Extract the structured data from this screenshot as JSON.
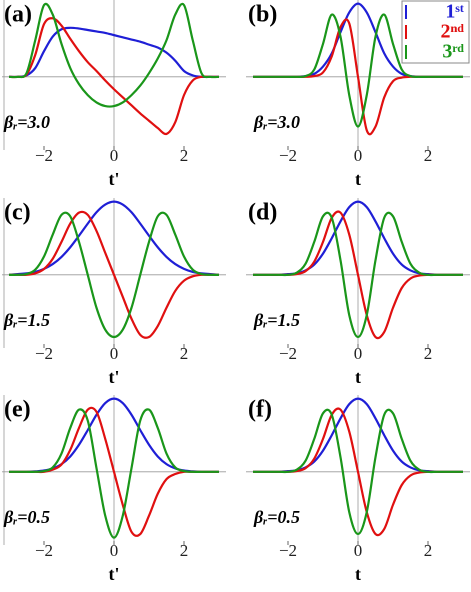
{
  "chart_data": [
    {
      "type": "line",
      "panel_label": "(a)",
      "annotation": "βᵣ=3.0",
      "x_label": "t'",
      "x": [
        -3,
        -2.75,
        -2.5,
        -2.25,
        -2,
        -1.75,
        -1.5,
        -1.25,
        -1,
        -0.75,
        -0.5,
        -0.25,
        0,
        0.25,
        0.5,
        0.75,
        1,
        1.25,
        1.5,
        1.75,
        2,
        2.25,
        2.5,
        2.75,
        3
      ],
      "series": [
        {
          "name": "1ˢᵗ",
          "color": "#1f1fd6",
          "values": [
            0,
            0,
            0.02,
            0.12,
            0.35,
            0.55,
            0.65,
            0.67,
            0.66,
            0.64,
            0.62,
            0.6,
            0.57,
            0.54,
            0.51,
            0.48,
            0.44,
            0.4,
            0.33,
            0.22,
            0.08,
            0.02,
            0,
            0,
            0
          ]
        },
        {
          "name": "2ⁿᵈ",
          "color": "#e01010",
          "values": [
            0,
            0,
            0.03,
            0.3,
            0.72,
            0.8,
            0.7,
            0.52,
            0.35,
            0.2,
            0.08,
            -0.05,
            -0.17,
            -0.28,
            -0.39,
            -0.5,
            -0.6,
            -0.7,
            -0.78,
            -0.62,
            -0.25,
            -0.05,
            0,
            0,
            0
          ]
        },
        {
          "name": "3ʳᵈ",
          "color": "#1a961a",
          "values": [
            0,
            0,
            0.05,
            0.5,
            0.98,
            0.85,
            0.45,
            0.12,
            -0.1,
            -0.25,
            -0.35,
            -0.4,
            -0.4,
            -0.35,
            -0.25,
            -0.12,
            0.05,
            0.25,
            0.5,
            0.85,
            0.98,
            0.5,
            0.05,
            0,
            0
          ]
        }
      ],
      "xlim": [
        -3.2,
        3.2
      ],
      "ylim": [
        -1,
        1.05
      ],
      "xticks": [
        {
          "value": -2,
          "label": "−2"
        },
        0,
        2
      ]
    },
    {
      "type": "line",
      "panel_label": "(b)",
      "annotation": "βᵣ=3.0",
      "x_label": "t",
      "legend": "upper right",
      "x": [
        -3,
        -2.75,
        -2.5,
        -2.25,
        -2,
        -1.75,
        -1.5,
        -1.25,
        -1,
        -0.75,
        -0.5,
        -0.25,
        0,
        0.25,
        0.5,
        0.75,
        1,
        1.25,
        1.5,
        1.75,
        2,
        2.25,
        2.5,
        2.75,
        3
      ],
      "series": [
        {
          "name": "1ˢᵗ",
          "color": "#1f1fd6",
          "values": [
            0,
            0,
            0,
            0,
            0,
            0,
            0.01,
            0.04,
            0.14,
            0.32,
            0.61,
            0.88,
            1,
            0.88,
            0.61,
            0.32,
            0.14,
            0.04,
            0.01,
            0,
            0,
            0,
            0,
            0,
            0
          ]
        },
        {
          "name": "2ⁿᵈ",
          "color": "#e01010",
          "values": [
            0,
            0,
            0,
            0,
            0,
            0,
            0,
            0.01,
            0.06,
            0.28,
            0.68,
            0.73,
            0,
            -0.73,
            -0.68,
            -0.28,
            -0.06,
            -0.01,
            0,
            0,
            0,
            0,
            0,
            0,
            0
          ]
        },
        {
          "name": "3ʳᵈ",
          "color": "#1a961a",
          "values": [
            0,
            0,
            0,
            0,
            0,
            0,
            0.01,
            0.1,
            0.45,
            0.85,
            0.55,
            -0.25,
            -0.68,
            -0.25,
            0.55,
            0.85,
            0.45,
            0.1,
            0.01,
            0,
            0,
            0,
            0,
            0,
            0
          ]
        }
      ],
      "xlim": [
        -3.2,
        3.2
      ],
      "ylim": [
        -1,
        1.05
      ],
      "xticks": [
        {
          "value": -2,
          "label": "−2"
        },
        0,
        2
      ]
    },
    {
      "type": "line",
      "panel_label": "(c)",
      "annotation": "βᵣ=1.5",
      "x_label": "t'",
      "x": [
        -3,
        -2.75,
        -2.5,
        -2.25,
        -2,
        -1.75,
        -1.5,
        -1.25,
        -1,
        -0.75,
        -0.5,
        -0.25,
        0,
        0.25,
        0.5,
        0.75,
        1,
        1.25,
        1.5,
        1.75,
        2,
        2.25,
        2.5,
        2.75,
        3
      ],
      "series": [
        {
          "name": "1ˢᵗ",
          "color": "#1f1fd6",
          "values": [
            0,
            0.01,
            0.02,
            0.04,
            0.082,
            0.147,
            0.245,
            0.377,
            0.535,
            0.7,
            0.855,
            0.96,
            1,
            0.96,
            0.855,
            0.7,
            0.535,
            0.377,
            0.245,
            0.147,
            0.082,
            0.04,
            0.02,
            0.01,
            0
          ]
        },
        {
          "name": "2ⁿᵈ",
          "color": "#e01010",
          "values": [
            0,
            0,
            0,
            0.02,
            0.08,
            0.22,
            0.45,
            0.7,
            0.85,
            0.82,
            0.6,
            0.3,
            0,
            -0.3,
            -0.6,
            -0.82,
            -0.85,
            -0.7,
            -0.45,
            -0.22,
            -0.08,
            -0.02,
            0,
            0,
            0
          ]
        },
        {
          "name": "3ʳᵈ",
          "color": "#1a961a",
          "values": [
            0,
            0,
            0.01,
            0.07,
            0.25,
            0.55,
            0.82,
            0.8,
            0.45,
            0,
            -0.45,
            -0.75,
            -0.85,
            -0.75,
            -0.45,
            0,
            0.45,
            0.8,
            0.82,
            0.55,
            0.25,
            0.07,
            0.01,
            0,
            0
          ]
        }
      ],
      "xlim": [
        -3.2,
        3.2
      ],
      "ylim": [
        -1,
        1.05
      ],
      "xticks": [
        {
          "value": -2,
          "label": "−2"
        },
        0,
        2
      ]
    },
    {
      "type": "line",
      "panel_label": "(d)",
      "annotation": "βᵣ=1.5",
      "x_label": "t",
      "x": [
        -3,
        -2.75,
        -2.5,
        -2.25,
        -2,
        -1.75,
        -1.5,
        -1.25,
        -1,
        -0.75,
        -0.5,
        -0.25,
        0,
        0.25,
        0.5,
        0.75,
        1,
        1.25,
        1.5,
        1.75,
        2,
        2.25,
        2.5,
        2.75,
        3
      ],
      "series": [
        {
          "name": "1ˢᵗ",
          "color": "#1f1fd6",
          "values": [
            0,
            0,
            0,
            0,
            0.01,
            0.02,
            0.06,
            0.14,
            0.29,
            0.5,
            0.73,
            0.925,
            1,
            0.925,
            0.73,
            0.5,
            0.29,
            0.14,
            0.06,
            0.02,
            0.01,
            0,
            0,
            0,
            0
          ]
        },
        {
          "name": "2ⁿᵈ",
          "color": "#e01010",
          "values": [
            0,
            0,
            0,
            0,
            0,
            0.01,
            0.05,
            0.18,
            0.45,
            0.78,
            0.85,
            0.55,
            0,
            -0.55,
            -0.85,
            -0.78,
            -0.45,
            -0.18,
            -0.05,
            -0.01,
            0,
            0,
            0,
            0,
            0
          ]
        },
        {
          "name": "3ʳᵈ",
          "color": "#1a961a",
          "values": [
            0,
            0,
            0,
            0,
            0,
            0.03,
            0.15,
            0.45,
            0.8,
            0.78,
            0.2,
            -0.55,
            -0.85,
            -0.55,
            0.2,
            0.78,
            0.8,
            0.45,
            0.15,
            0.03,
            0,
            0,
            0,
            0,
            0
          ]
        }
      ],
      "xlim": [
        -3.2,
        3.2
      ],
      "ylim": [
        -1,
        1.05
      ],
      "xticks": [
        {
          "value": -2,
          "label": "−2"
        },
        0,
        2
      ]
    },
    {
      "type": "line",
      "panel_label": "(e)",
      "annotation": "βᵣ=0.5",
      "x_label": "t'",
      "x": [
        -3,
        -2.75,
        -2.5,
        -2.25,
        -2,
        -1.75,
        -1.5,
        -1.25,
        -1,
        -0.75,
        -0.5,
        -0.25,
        0,
        0.25,
        0.5,
        0.75,
        1,
        1.25,
        1.5,
        1.75,
        2,
        2.25,
        2.5,
        2.75,
        3
      ],
      "series": [
        {
          "name": "1ˢᵗ",
          "color": "#1f1fd6",
          "values": [
            0,
            0,
            0,
            0.006,
            0.018,
            0.047,
            0.105,
            0.21,
            0.37,
            0.57,
            0.78,
            0.94,
            1,
            0.94,
            0.78,
            0.57,
            0.37,
            0.21,
            0.105,
            0.047,
            0.018,
            0.006,
            0,
            0,
            0
          ]
        },
        {
          "name": "2ⁿᵈ",
          "color": "#e01010",
          "values": [
            0,
            0,
            0,
            0,
            0,
            0.03,
            0.1,
            0.3,
            0.6,
            0.85,
            0.82,
            0.45,
            0,
            -0.45,
            -0.82,
            -0.85,
            -0.6,
            -0.3,
            -0.1,
            -0.03,
            0,
            0,
            0,
            0,
            0
          ]
        },
        {
          "name": "3ʳᵈ",
          "color": "#1a961a",
          "values": [
            0,
            0,
            0,
            0,
            0.01,
            0.06,
            0.25,
            0.6,
            0.85,
            0.7,
            0.05,
            -0.6,
            -0.9,
            -0.6,
            0.05,
            0.7,
            0.85,
            0.6,
            0.25,
            0.06,
            0.01,
            0,
            0,
            0,
            0
          ]
        }
      ],
      "xlim": [
        -3.2,
        3.2
      ],
      "ylim": [
        -1,
        1.05
      ],
      "xticks": [
        {
          "value": -2,
          "label": "−2"
        },
        0,
        2
      ]
    },
    {
      "type": "line",
      "panel_label": "(f)",
      "annotation": "βᵣ=0.5",
      "x_label": "t",
      "x": [
        -3,
        -2.75,
        -2.5,
        -2.25,
        -2,
        -1.75,
        -1.5,
        -1.25,
        -1,
        -0.75,
        -0.5,
        -0.25,
        0,
        0.25,
        0.5,
        0.75,
        1,
        1.25,
        1.5,
        1.75,
        2,
        2.25,
        2.5,
        2.75,
        3
      ],
      "series": [
        {
          "name": "1ˢᵗ",
          "color": "#1f1fd6",
          "values": [
            0,
            0,
            0,
            0,
            0.01,
            0.02,
            0.06,
            0.14,
            0.29,
            0.5,
            0.73,
            0.925,
            1,
            0.925,
            0.73,
            0.5,
            0.29,
            0.14,
            0.06,
            0.02,
            0.01,
            0,
            0,
            0,
            0
          ]
        },
        {
          "name": "2ⁿᵈ",
          "color": "#e01010",
          "values": [
            0,
            0,
            0,
            0,
            0,
            0.01,
            0.05,
            0.18,
            0.45,
            0.78,
            0.85,
            0.55,
            0,
            -0.55,
            -0.85,
            -0.78,
            -0.45,
            -0.18,
            -0.05,
            -0.01,
            0,
            0,
            0,
            0,
            0
          ]
        },
        {
          "name": "3ʳᵈ",
          "color": "#1a961a",
          "values": [
            0,
            0,
            0,
            0,
            0,
            0.03,
            0.15,
            0.45,
            0.8,
            0.78,
            0.2,
            -0.55,
            -0.85,
            -0.55,
            0.2,
            0.78,
            0.8,
            0.45,
            0.15,
            0.03,
            0,
            0,
            0,
            0,
            0
          ]
        }
      ],
      "xlim": [
        -3.2,
        3.2
      ],
      "ylim": [
        -1,
        1.05
      ],
      "xticks": [
        {
          "value": -2,
          "label": "−2"
        },
        0,
        2
      ]
    }
  ]
}
